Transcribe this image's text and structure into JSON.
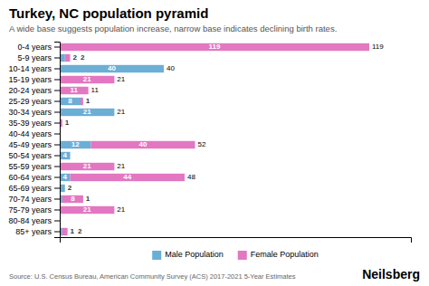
{
  "chart_data": {
    "type": "bar",
    "orientation": "horizontal",
    "stacked": true,
    "title": "Turkey, NC population pyramid",
    "subtitle": "A wide base suggests population increase, narrow base indicates declining birth rates.",
    "source": "Source: U.S. Census Bureau, American Community Survey (ACS) 2017-2021 5-Year Estimates",
    "annotations": [
      "Neilsberg"
    ],
    "categories": [
      "85+ years",
      "80-84 years",
      "75-79 years",
      "70-74 years",
      "65-69 years",
      "60-64 years",
      "55-59 years",
      "50-54 years",
      "45-49 years",
      "40-44 years",
      "35-39 years",
      "30-34 years",
      "25-29 years",
      "20-24 years",
      "15-19 years",
      "10-14 years",
      "5-9 years",
      "0-4 years"
    ],
    "series": [
      {
        "name": "Male Population",
        "color": "#6baed6",
        "values": [
          1,
          0,
          0,
          1,
          2,
          4,
          0,
          4,
          12,
          0,
          0,
          21,
          8,
          0,
          0,
          40,
          2,
          0
        ]
      },
      {
        "name": "Female Population",
        "color": "#e377c2",
        "values": [
          2,
          0,
          21,
          8,
          0,
          44,
          21,
          0,
          40,
          0,
          1,
          0,
          1,
          11,
          21,
          0,
          2,
          119
        ]
      }
    ],
    "totals": [
      null,
      null,
      21,
      null,
      null,
      48,
      21,
      null,
      52,
      null,
      null,
      21,
      null,
      11,
      21,
      40,
      null,
      119
    ],
    "xlim": [
      0,
      135
    ],
    "xticks": [],
    "grid": false,
    "legend": "bottom",
    "data_labels": true,
    "tick_labels": "y"
  }
}
